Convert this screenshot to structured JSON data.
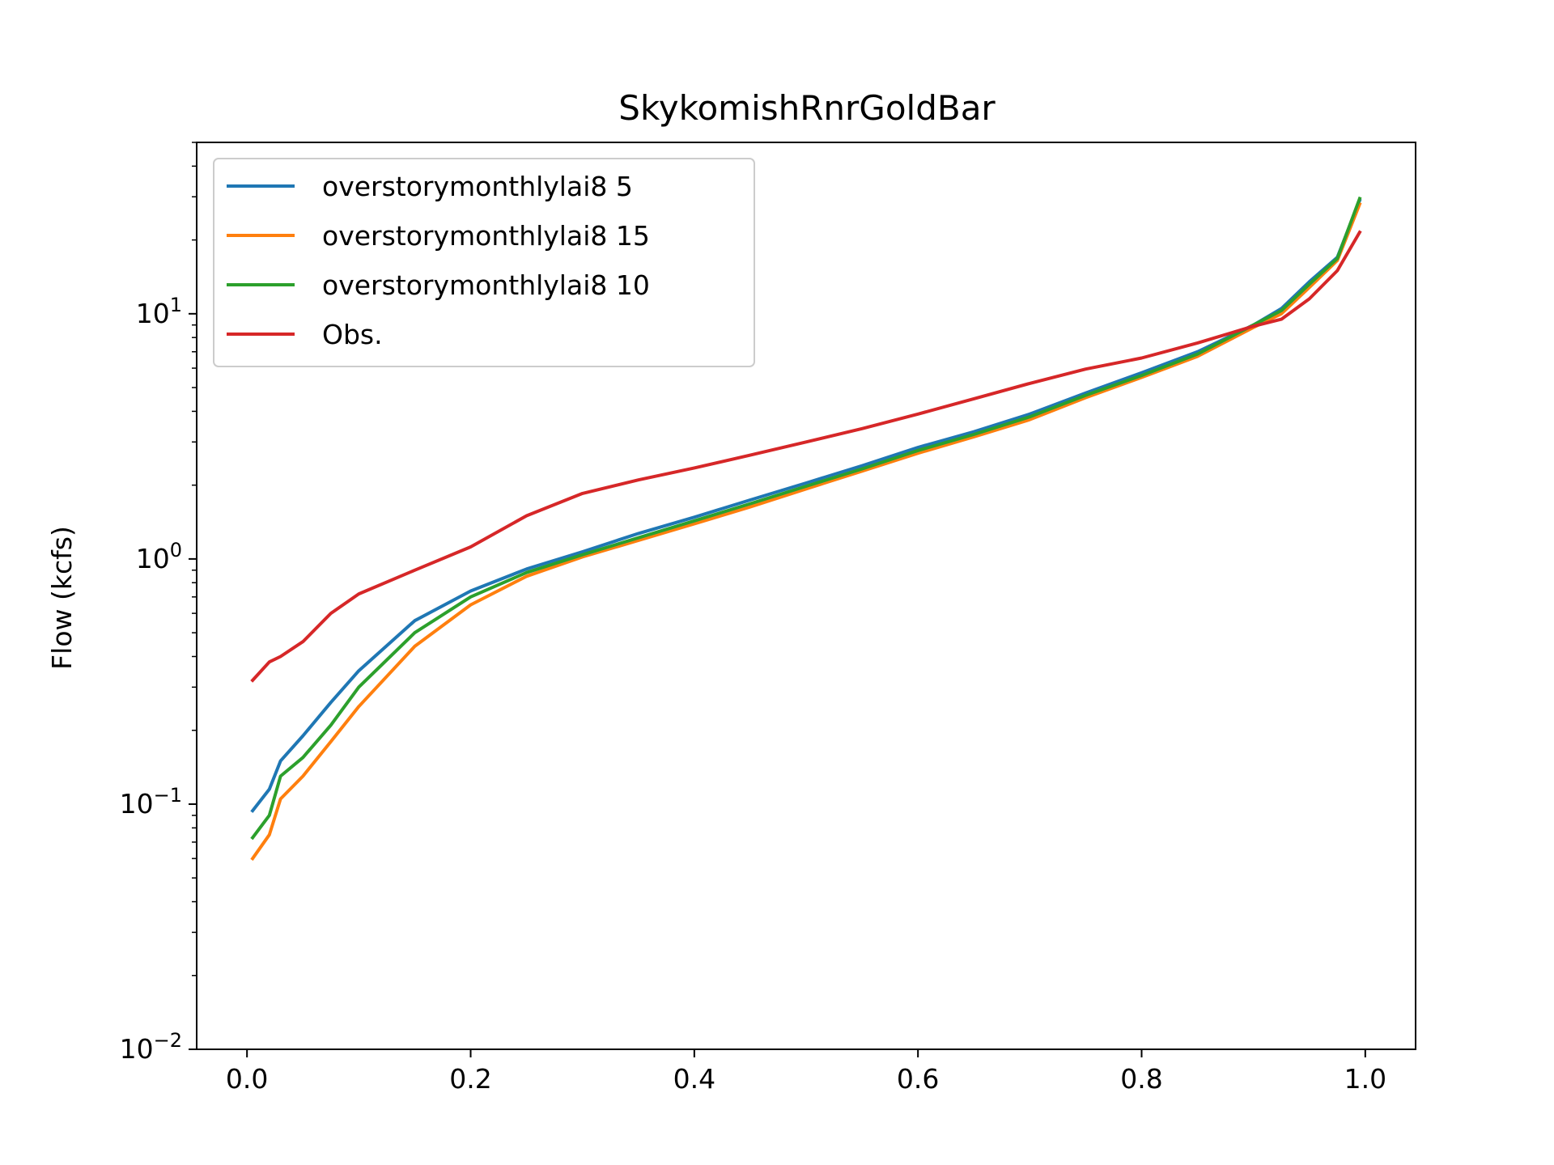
{
  "chart_data": {
    "type": "line",
    "title": "SkykomishRnrGoldBar",
    "xlabel": "",
    "ylabel": "Flow (kcfs)",
    "xlim": [
      -0.045,
      1.045
    ],
    "ylim": [
      0.01,
      50
    ],
    "yscale": "log",
    "grid": false,
    "legend_position": "top-left",
    "x_ticks": [
      {
        "value": 0.0,
        "label": "0.0"
      },
      {
        "value": 0.2,
        "label": "0.2"
      },
      {
        "value": 0.4,
        "label": "0.4"
      },
      {
        "value": 0.6,
        "label": "0.6"
      },
      {
        "value": 0.8,
        "label": "0.8"
      },
      {
        "value": 1.0,
        "label": "1.0"
      }
    ],
    "y_ticks": [
      {
        "value": 0.01,
        "base": "10",
        "exp": "−2"
      },
      {
        "value": 0.1,
        "base": "10",
        "exp": "−1"
      },
      {
        "value": 1,
        "base": "10",
        "exp": "0"
      },
      {
        "value": 10,
        "base": "10",
        "exp": "1"
      }
    ],
    "x": [
      0.005,
      0.02,
      0.03,
      0.05,
      0.075,
      0.1,
      0.15,
      0.2,
      0.25,
      0.3,
      0.35,
      0.4,
      0.45,
      0.5,
      0.55,
      0.6,
      0.65,
      0.7,
      0.75,
      0.8,
      0.85,
      0.9,
      0.925,
      0.95,
      0.975,
      0.995
    ],
    "series": [
      {
        "name": "overstorymonthlylai8 5",
        "color": "#1f77b4",
        "values": [
          0.094,
          0.115,
          0.15,
          0.19,
          0.26,
          0.35,
          0.56,
          0.74,
          0.91,
          1.07,
          1.27,
          1.48,
          1.74,
          2.04,
          2.4,
          2.85,
          3.3,
          3.9,
          4.75,
          5.75,
          7.0,
          9.0,
          10.5,
          13.5,
          17.0,
          29.0
        ]
      },
      {
        "name": "overstorymonthlylai8 15",
        "color": "#ff7f0e",
        "values": [
          0.06,
          0.075,
          0.105,
          0.13,
          0.18,
          0.25,
          0.44,
          0.65,
          0.85,
          1.02,
          1.19,
          1.39,
          1.63,
          1.93,
          2.28,
          2.7,
          3.15,
          3.7,
          4.55,
          5.5,
          6.7,
          8.8,
          10.0,
          12.8,
          16.5,
          28.0
        ]
      },
      {
        "name": "overstorymonthlylai8 10",
        "color": "#2ca02c",
        "values": [
          0.073,
          0.09,
          0.13,
          0.155,
          0.21,
          0.3,
          0.5,
          0.7,
          0.88,
          1.04,
          1.22,
          1.43,
          1.68,
          1.98,
          2.33,
          2.77,
          3.22,
          3.8,
          4.65,
          5.6,
          6.85,
          9.0,
          10.3,
          13.2,
          16.8,
          29.5
        ]
      },
      {
        "name": "Obs.",
        "color": "#d62728",
        "values": [
          0.32,
          0.38,
          0.4,
          0.46,
          0.6,
          0.72,
          0.9,
          1.12,
          1.5,
          1.85,
          2.1,
          2.35,
          2.65,
          3.0,
          3.4,
          3.9,
          4.5,
          5.2,
          5.95,
          6.6,
          7.6,
          8.9,
          9.5,
          11.5,
          15.0,
          21.5
        ]
      }
    ]
  }
}
